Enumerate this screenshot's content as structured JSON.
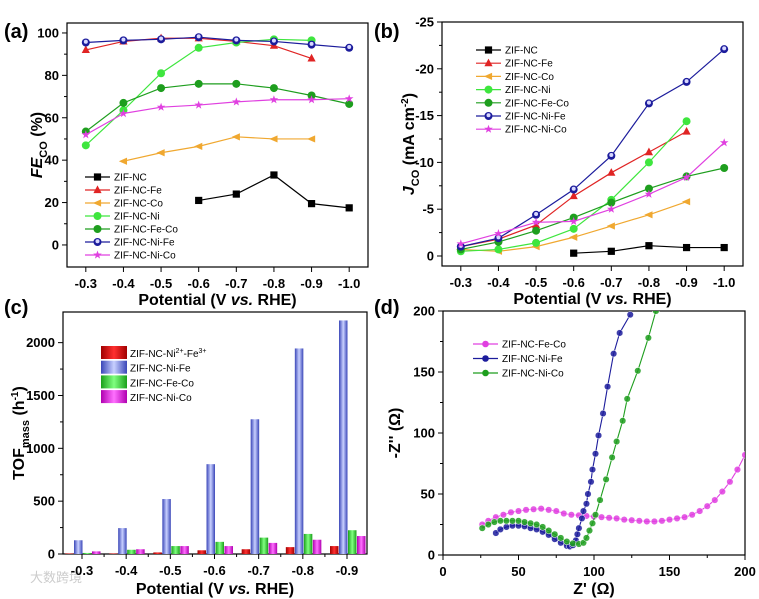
{
  "panel_labels": [
    "(a)",
    "(b)",
    "(c)",
    "(d)"
  ],
  "watermark": "大数跨境",
  "colors": {
    "ZIF-NC": "#000000",
    "ZIF-NC-Fe": "#e02424",
    "ZIF-NC-Co": "#f0a830",
    "ZIF-NC-Ni": "#3ee63e",
    "ZIF-NC-Fe-Co": "#1e9e1e",
    "ZIF-NC-Ni-Fe": "#1c1c9c",
    "ZIF-NC-Ni-Co": "#e040e0"
  },
  "chart_data": [
    {
      "type": "line",
      "panel": "(a)",
      "xlabel_parts": [
        "Potential (V ",
        "vs.",
        " RHE)"
      ],
      "ylabel_parts": [
        "FE",
        "CO",
        " (%)"
      ],
      "xlim": [
        -0.25,
        -1.05
      ],
      "ylim": [
        -10.4,
        104.7
      ],
      "xticks": [
        -0.3,
        -0.4,
        -0.5,
        -0.6,
        -0.7,
        -0.8,
        -0.9,
        -1.0
      ],
      "xtick_labels": [
        "-0.3",
        "-0.4",
        "-0.5",
        "-0.6",
        "-0.7",
        "-0.8",
        "-0.9",
        "-1.0"
      ],
      "yticks": [
        0,
        20,
        40,
        60,
        80,
        100
      ],
      "ytick_labels": [
        "0",
        "20",
        "40",
        "60",
        "80",
        "100"
      ],
      "legend_position": "bottom-left",
      "series": [
        {
          "name": "ZIF-NC",
          "marker": "square",
          "x": [
            -0.6,
            -0.7,
            -0.8,
            -0.9,
            -1.0
          ],
          "y": [
            21,
            24,
            33,
            19.5,
            17.5
          ]
        },
        {
          "name": "ZIF-NC-Fe",
          "marker": "triangle-up",
          "x": [
            -0.3,
            -0.4,
            -0.5,
            -0.6,
            -0.7,
            -0.8,
            -0.9
          ],
          "y": [
            92,
            96,
            97.5,
            97.5,
            96,
            94,
            88
          ]
        },
        {
          "name": "ZIF-NC-Co",
          "marker": "triangle-left",
          "x": [
            -0.4,
            -0.5,
            -0.6,
            -0.7,
            -0.8,
            -0.9
          ],
          "y": [
            39.5,
            43.5,
            46.5,
            51,
            50,
            50
          ]
        },
        {
          "name": "ZIF-NC-Ni",
          "marker": "circle",
          "x": [
            -0.3,
            -0.4,
            -0.5,
            -0.6,
            -0.7,
            -0.8,
            -0.9
          ],
          "y": [
            47,
            63.5,
            81,
            93,
            95.5,
            97,
            96.5
          ]
        },
        {
          "name": "ZIF-NC-Fe-Co",
          "marker": "circle",
          "x": [
            -0.3,
            -0.4,
            -0.5,
            -0.6,
            -0.7,
            -0.8,
            -0.9,
            -1.0
          ],
          "y": [
            53.5,
            67,
            74,
            76,
            76,
            74,
            70.5,
            66.5
          ]
        },
        {
          "name": "ZIF-NC-Ni-Fe",
          "marker": "circle-half",
          "x": [
            -0.3,
            -0.4,
            -0.5,
            -0.6,
            -0.7,
            -0.8,
            -0.9,
            -1.0
          ],
          "y": [
            95.5,
            96.5,
            97,
            98,
            96.5,
            96,
            94.5,
            93
          ]
        },
        {
          "name": "ZIF-NC-Ni-Co",
          "marker": "star",
          "x": [
            -0.3,
            -0.4,
            -0.5,
            -0.6,
            -0.7,
            -0.8,
            -0.9,
            -1.0
          ],
          "y": [
            52,
            62,
            65,
            66,
            67.5,
            68.5,
            68.5,
            69
          ]
        }
      ]
    },
    {
      "type": "line",
      "panel": "(b)",
      "xlabel_parts": [
        "Potential (V ",
        "vs.",
        " RHE)"
      ],
      "ylabel_parts": [
        "J",
        "CO",
        " (mA cm",
        "-2",
        ")"
      ],
      "xlim": [
        -0.25,
        -1.05
      ],
      "ylim": [
        1.07,
        -25
      ],
      "xticks": [
        -0.3,
        -0.4,
        -0.5,
        -0.6,
        -0.7,
        -0.8,
        -0.9,
        -1.0
      ],
      "xtick_labels": [
        "-0.3",
        "-0.4",
        "-0.5",
        "-0.6",
        "-0.7",
        "-0.8",
        "-0.9",
        "-1.0"
      ],
      "yticks": [
        0,
        -5,
        -10,
        -15,
        -20,
        -25
      ],
      "ytick_labels": [
        "0",
        "-5",
        "-10",
        "-15",
        "-20",
        "-25"
      ],
      "legend_position": "top-left",
      "series": [
        {
          "name": "ZIF-NC",
          "marker": "square",
          "x": [
            -0.6,
            -0.7,
            -0.8,
            -0.9,
            -1.0
          ],
          "y": [
            -0.3,
            -0.5,
            -1.1,
            -0.9,
            -0.9
          ]
        },
        {
          "name": "ZIF-NC-Fe",
          "marker": "triangle-up",
          "x": [
            -0.3,
            -0.4,
            -0.5,
            -0.6,
            -0.7,
            -0.8,
            -0.9
          ],
          "y": [
            -1.0,
            -1.8,
            -3.3,
            -6.4,
            -8.9,
            -11.1,
            -13.3
          ]
        },
        {
          "name": "ZIF-NC-Co",
          "marker": "triangle-left",
          "x": [
            -0.3,
            -0.4,
            -0.5,
            -0.6,
            -0.7,
            -0.8,
            -0.9
          ],
          "y": [
            -0.7,
            -0.5,
            -1.0,
            -2.0,
            -3.2,
            -4.4,
            -5.8
          ]
        },
        {
          "name": "ZIF-NC-Ni",
          "marker": "circle",
          "x": [
            -0.3,
            -0.4,
            -0.5,
            -0.6,
            -0.7,
            -0.8,
            -0.9
          ],
          "y": [
            -0.5,
            -0.7,
            -1.4,
            -2.9,
            -6.0,
            -10.0,
            -14.4
          ]
        },
        {
          "name": "ZIF-NC-Fe-Co",
          "marker": "circle",
          "x": [
            -0.3,
            -0.4,
            -0.5,
            -0.6,
            -0.7,
            -0.8,
            -0.9,
            -1.0
          ],
          "y": [
            -0.7,
            -1.5,
            -2.7,
            -4.1,
            -5.7,
            -7.2,
            -8.5,
            -9.4
          ]
        },
        {
          "name": "ZIF-NC-Ni-Fe",
          "marker": "circle-half",
          "x": [
            -0.3,
            -0.4,
            -0.5,
            -0.6,
            -0.7,
            -0.8,
            -0.9,
            -1.0
          ],
          "y": [
            -1.0,
            -1.9,
            -4.4,
            -7.1,
            -10.7,
            -16.3,
            -18.6,
            -22.1
          ]
        },
        {
          "name": "ZIF-NC-Ni-Co",
          "marker": "star",
          "x": [
            -0.3,
            -0.4,
            -0.5,
            -0.6,
            -0.7,
            -0.8,
            -0.9,
            -1.0
          ],
          "y": [
            -1.3,
            -2.4,
            -3.6,
            -3.7,
            -5.0,
            -6.6,
            -8.4,
            -12.1
          ]
        }
      ]
    },
    {
      "type": "bar",
      "panel": "(c)",
      "xlabel_parts": [
        "Potential (V ",
        "vs.",
        " RHE)"
      ],
      "ylabel_parts": [
        "TOF",
        "mass",
        " (h",
        "-1",
        ")"
      ],
      "categories": [
        "-0.3",
        "-0.4",
        "-0.5",
        "-0.6",
        "-0.7",
        "-0.8",
        "-0.9"
      ],
      "ylim": [
        0,
        2290
      ],
      "yticks": [
        0,
        500,
        1000,
        1500,
        2000
      ],
      "ytick_labels": [
        "0",
        "500",
        "1000",
        "1500",
        "2000"
      ],
      "legend_position": "top-left",
      "series": [
        {
          "name_parts": [
            "ZIF-NC-Ni",
            "2+",
            "-Fe",
            "3+"
          ],
          "color": "#e01010",
          "values": [
            5,
            5,
            15,
            35,
            45,
            65,
            75
          ]
        },
        {
          "name_parts": [
            "ZIF-NC-Ni-Fe"
          ],
          "color": "#8c96e6",
          "values": [
            130,
            245,
            520,
            850,
            1275,
            1945,
            2210
          ]
        },
        {
          "name_parts": [
            "ZIF-NC-Fe-Co"
          ],
          "color": "#3ee63e",
          "values": [
            10,
            40,
            75,
            115,
            155,
            190,
            225
          ]
        },
        {
          "name_parts": [
            "ZIF-NC-Ni-Co"
          ],
          "color": "#e020e0",
          "values": [
            25,
            45,
            75,
            75,
            105,
            135,
            170
          ]
        }
      ]
    },
    {
      "type": "scatter",
      "panel": "(d)",
      "xlabel_parts": [
        "Z' (Ω)"
      ],
      "ylabel_parts": [
        "-Z'' (Ω)"
      ],
      "xlim": [
        0,
        200
      ],
      "ylim": [
        0,
        200
      ],
      "xticks": [
        0,
        50,
        100,
        150,
        200
      ],
      "xtick_labels": [
        "0",
        "50",
        "100",
        "150",
        "200"
      ],
      "yticks": [
        0,
        50,
        100,
        150,
        200
      ],
      "ytick_labels": [
        "0",
        "50",
        "100",
        "150",
        "200"
      ],
      "legend_position": "top-left",
      "series": [
        {
          "name": "ZIF-NC-Fe-Co",
          "color": "#e040e0",
          "x": [
            26,
            30,
            35,
            40,
            45,
            50,
            55,
            60,
            65,
            70,
            75,
            80,
            85,
            90,
            95,
            100,
            105,
            110,
            115,
            120,
            125,
            130,
            135,
            140,
            145,
            150,
            155,
            160,
            165,
            170,
            175,
            180,
            185,
            190,
            195,
            200
          ],
          "y": [
            25,
            28,
            31,
            33,
            35,
            36,
            37,
            37.5,
            38,
            37,
            36,
            34,
            33,
            32.5,
            32,
            31.5,
            31,
            30.5,
            30,
            29,
            28.5,
            28,
            27.5,
            27.5,
            28,
            29,
            30,
            31,
            33,
            36,
            40,
            45,
            52,
            60,
            70,
            82
          ]
        },
        {
          "name": "ZIF-NC-Ni-Fe",
          "color": "#1c1c9c",
          "x": [
            35,
            38,
            42,
            46,
            50,
            54,
            58,
            62,
            66,
            70,
            74,
            78,
            82,
            84,
            86,
            88,
            89,
            90,
            92,
            93,
            95,
            96,
            98,
            99,
            101,
            103,
            106,
            109,
            113,
            117,
            124
          ],
          "y": [
            18,
            21,
            23,
            24,
            24,
            23.5,
            22,
            21,
            19,
            16.5,
            13,
            10,
            7.5,
            7,
            8,
            12,
            17,
            22,
            30,
            36,
            42,
            50,
            60,
            70,
            83,
            98,
            116,
            138,
            165,
            182,
            197
          ]
        },
        {
          "name": "ZIF-NC-Ni-Co",
          "color": "#1e9e1e",
          "x": [
            26,
            30,
            34,
            38,
            42,
            46,
            50,
            54,
            58,
            62,
            66,
            70,
            74,
            78,
            82,
            86,
            90,
            93,
            95,
            97,
            99,
            101,
            104,
            108,
            112,
            115,
            119,
            122,
            129,
            136,
            141
          ],
          "y": [
            22,
            25,
            27,
            28,
            28,
            28,
            28,
            27,
            26,
            25,
            23,
            20,
            17,
            14,
            11,
            9.5,
            9,
            10,
            14,
            20,
            26,
            33,
            45,
            62,
            80,
            93,
            110,
            128,
            151,
            178,
            200
          ]
        }
      ]
    }
  ]
}
